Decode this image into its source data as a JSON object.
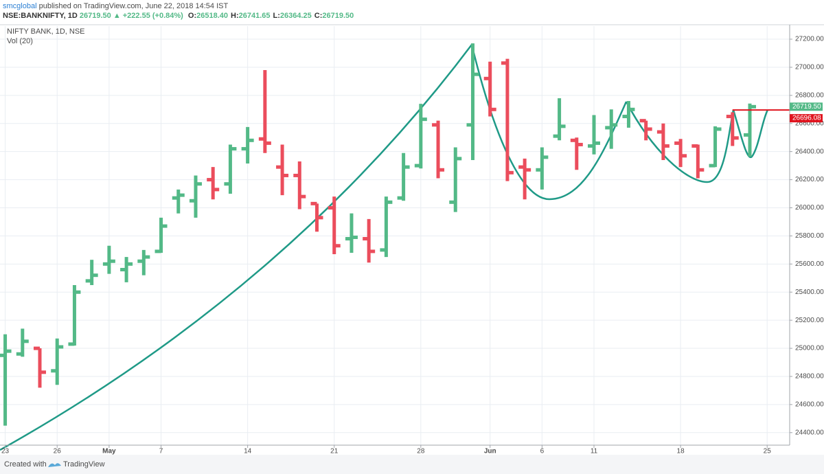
{
  "header": {
    "publisher": "smcglobal",
    "published": "published on TradingView.com, June 22, 2018 14:54 IST",
    "symbol": "NSE:BANKNIFTY, 1D",
    "last": "26719.50",
    "change": "▲ +222.55 (+0.84%)",
    "ohlc": [
      "O:",
      "26518.40",
      "H:",
      "26741.65",
      "L:",
      "26364.25",
      "C:",
      "26719.50"
    ]
  },
  "legend": [
    "NIFTY BANK, 1D, NSE",
    "Vol (20)"
  ],
  "footer": {
    "created": "Created with",
    "brand": "TradingView"
  },
  "chart_data": {
    "type": "ohlc",
    "up_color": "#53b987",
    "down_color": "#eb4d5c",
    "open": [
      24950,
      24960,
      25000,
      24840,
      25030,
      25480,
      25600,
      25560,
      25620,
      25690,
      26070,
      26050,
      26200,
      26170,
      26420,
      26490,
      26290,
      26230,
      26030,
      26000,
      25780,
      25780,
      25700,
      26070,
      26300,
      26590,
      26040,
      26590,
      26920,
      27030,
      26290,
      26270,
      26510,
      26480,
      26440,
      26570,
      26650,
      26620,
      26540,
      26460,
      26440,
      26300,
      26650,
      26518.4
    ],
    "high": [
      25100,
      25140,
      25000,
      25070,
      25450,
      25630,
      25730,
      25650,
      25700,
      25930,
      26130,
      26230,
      26290,
      26450,
      26575,
      26980,
      26450,
      26330,
      26030,
      26080,
      25960,
      25920,
      26080,
      26390,
      26740,
      26620,
      26430,
      27170,
      27040,
      27060,
      26350,
      26430,
      26780,
      26500,
      26660,
      26700,
      26760,
      26620,
      26600,
      26490,
      26450,
      26580,
      26680,
      26741.65
    ],
    "low": [
      24450,
      24940,
      24720,
      24740,
      25020,
      25450,
      25530,
      25470,
      25520,
      25680,
      25960,
      25930,
      26060,
      26100,
      26315,
      26390,
      26090,
      25990,
      25830,
      25670,
      25680,
      25610,
      25650,
      26050,
      26280,
      26210,
      25970,
      26340,
      26650,
      26190,
      26060,
      26130,
      26480,
      26270,
      26380,
      26420,
      26570,
      26480,
      26340,
      26290,
      26210,
      26290,
      26440,
      26364.25
    ],
    "close": [
      24980,
      25050,
      24830,
      25010,
      25400,
      25520,
      25620,
      25600,
      25650,
      25870,
      26090,
      26170,
      26130,
      26420,
      26480,
      26460,
      26230,
      26080,
      25930,
      25730,
      25790,
      25690,
      26040,
      26290,
      26630,
      26270,
      26350,
      26950,
      26700,
      26250,
      26270,
      26360,
      26580,
      26450,
      26460,
      26590,
      26700,
      26560,
      26440,
      26370,
      26270,
      26560,
      26497,
      26719.5
    ],
    "xlim": [
      -0.3,
      45.3
    ],
    "xticks": [
      {
        "value": 0,
        "label": "23"
      },
      {
        "value": 3,
        "label": "26"
      },
      {
        "value": 6,
        "label": "May"
      },
      {
        "value": 9,
        "label": "7"
      },
      {
        "value": 14,
        "label": "14"
      },
      {
        "value": 19,
        "label": "21"
      },
      {
        "value": 24,
        "label": "28"
      },
      {
        "value": 28,
        "label": "Jun"
      },
      {
        "value": 31,
        "label": "6"
      },
      {
        "value": 34,
        "label": "11"
      },
      {
        "value": 39,
        "label": "18"
      },
      {
        "value": 44,
        "label": "25"
      }
    ],
    "ylim": [
      24311,
      27293
    ],
    "yticks": [
      {
        "value": 24400,
        "label": "24400.00"
      },
      {
        "value": 24600,
        "label": "24600.00"
      },
      {
        "value": 24800,
        "label": "24800.00"
      },
      {
        "value": 25000,
        "label": "25000.00"
      },
      {
        "value": 25200,
        "label": "25200.00"
      },
      {
        "value": 25400,
        "label": "25400.00"
      },
      {
        "value": 25600,
        "label": "25600.00"
      },
      {
        "value": 25800,
        "label": "25800.00"
      },
      {
        "value": 26000,
        "label": "26000.00"
      },
      {
        "value": 26200,
        "label": "26200.00"
      },
      {
        "value": 26400,
        "label": "26400.00"
      },
      {
        "value": 26600,
        "label": "26600.00"
      },
      {
        "value": 26800,
        "label": "26800.00"
      },
      {
        "value": 27000,
        "label": "27000.00"
      },
      {
        "value": 27200,
        "label": "27200.00"
      }
    ],
    "grid": true,
    "last_price": {
      "value": 26719.5,
      "label": "26719.50",
      "color": "#53b987"
    },
    "level_line": {
      "value": 26696.08,
      "label": "26696.08",
      "color": "#e0141e",
      "from": 42
    }
  }
}
